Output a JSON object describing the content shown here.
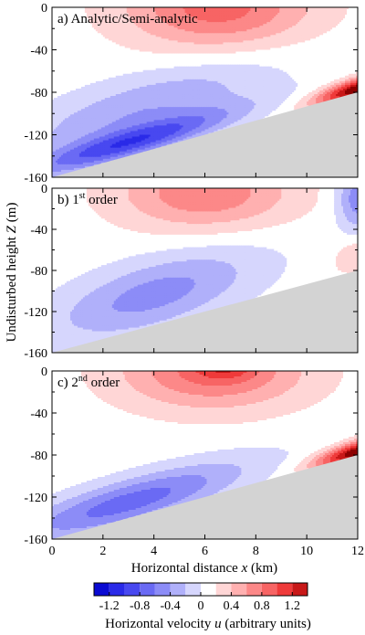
{
  "chart_data": {
    "type": "heatmap",
    "ylabel": "Undisturbed height Z (m)",
    "ylabel_prefix": "Undisturbed height ",
    "ylabel_var": "Z",
    "ylabel_suffix": " (m)",
    "xlabel_prefix": "Horizontal distance ",
    "xlabel_var": "x",
    "xlabel_suffix": " (km)",
    "colorbar_label_prefix": "Horizontal velocity ",
    "colorbar_label_var": "u",
    "colorbar_label_suffix": " (arbitrary units)",
    "xlim": [
      0,
      12
    ],
    "ylim": [
      -160,
      0
    ],
    "x_ticks": [
      "0",
      "2",
      "4",
      "6",
      "8",
      "10",
      "12"
    ],
    "y_ticks": [
      "0",
      "-40",
      "-80",
      "-120",
      "-160"
    ],
    "colorbar": {
      "range": [
        -1.4,
        1.4
      ],
      "ticks": [
        "-1.2",
        "-0.8",
        "-0.4",
        "0",
        "0.4",
        "0.8",
        "1.2"
      ],
      "levels": [
        -1.4,
        -1.2,
        -1.0,
        -0.8,
        -0.6,
        -0.4,
        -0.2,
        0,
        0.2,
        0.4,
        0.6,
        0.8,
        1.0,
        1.2,
        1.4
      ],
      "colors": [
        "#0a0ad2",
        "#2a2ae8",
        "#4848f0",
        "#6a6af4",
        "#8c8cf7",
        "#b0b0fa",
        "#d6d6fd",
        "#ffffff",
        "#ffd6d6",
        "#ffb0b0",
        "#fc8888",
        "#f76464",
        "#ef3a3a",
        "#c81818",
        "#8c0000"
      ]
    },
    "seabed": {
      "x": [
        0,
        12
      ],
      "z": [
        -160,
        -80
      ],
      "color": "#d3d3d3"
    },
    "panels": [
      {
        "label": "a) Analytic/Semi-analytic",
        "label_main": "a) Analytic/Semi-analytic",
        "label_sup": "",
        "label_after": ""
      },
      {
        "label": "b) 1st order",
        "label_main": "b) 1",
        "label_sup": "st",
        "label_after": " order"
      },
      {
        "label": "c) 2nd order",
        "label_main": "c) 2",
        "label_sup": "nd",
        "label_after": " order"
      }
    ]
  }
}
